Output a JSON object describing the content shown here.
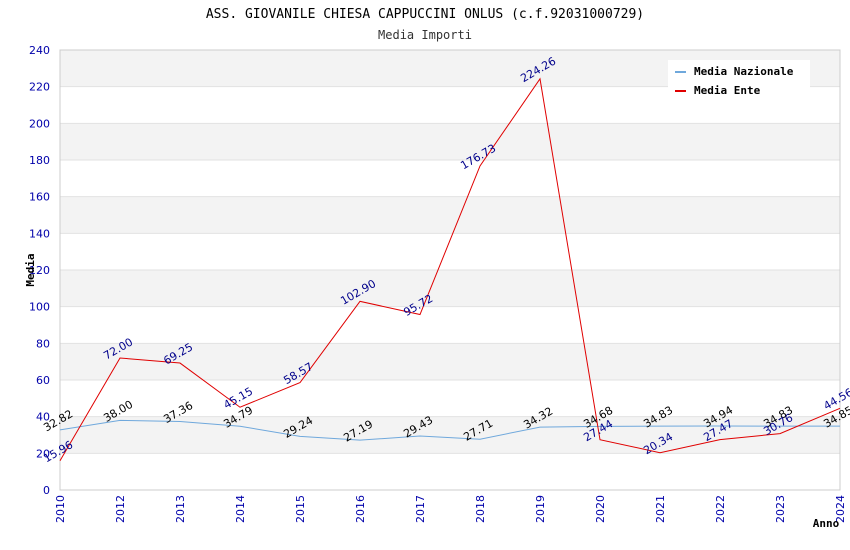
{
  "chart_data": {
    "type": "line",
    "title": "ASS. GIOVANILE CHIESA CAPPUCCINI ONLUS (c.f.92031000729)",
    "subtitle": "Media Importi",
    "xlabel": "Anno",
    "ylabel": "Media",
    "ylim": [
      0,
      240
    ],
    "yticks": [
      0,
      20,
      40,
      60,
      80,
      100,
      120,
      140,
      160,
      180,
      200,
      220,
      240
    ],
    "grid": true,
    "legend_position": "top-right",
    "categories": [
      "2010",
      "2012",
      "2013",
      "2014",
      "2015",
      "2016",
      "2017",
      "2018",
      "2019",
      "2020",
      "2021",
      "2022",
      "2023",
      "2024"
    ],
    "series": [
      {
        "name": "Media Nazionale",
        "color": "#6fa8dc",
        "values": [
          32.82,
          38.0,
          37.36,
          34.79,
          29.24,
          27.19,
          29.43,
          27.71,
          34.32,
          34.68,
          34.83,
          34.94,
          34.83,
          34.85
        ],
        "labels": [
          "32.82",
          "38.00",
          "37.36",
          "34.79",
          "29.24",
          "27.19",
          "29.43",
          "27.71",
          "34.32",
          "34.68",
          "34.83",
          "34.94",
          "34.83",
          "34.85"
        ]
      },
      {
        "name": "Media Ente",
        "color": "#e00000",
        "values": [
          15.96,
          72.0,
          69.25,
          45.15,
          58.57,
          102.9,
          95.72,
          176.73,
          224.26,
          27.44,
          20.34,
          27.47,
          30.76,
          44.56
        ],
        "labels": [
          "15.96",
          "72.00",
          "69.25",
          "45.15",
          "58.57",
          "102.90",
          "95.72",
          "176.73",
          "224.26",
          "27.44",
          "20.34",
          "27.47",
          "30.76",
          "44.56"
        ]
      }
    ]
  }
}
